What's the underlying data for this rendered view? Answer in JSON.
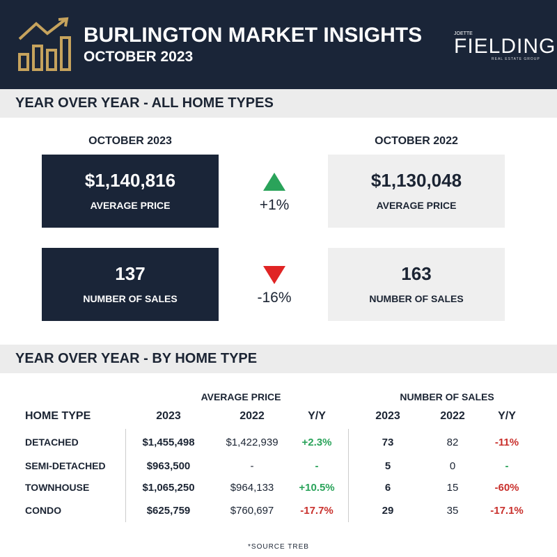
{
  "header": {
    "title": "BURLINGTON MARKET INSIGHTS",
    "subtitle": "OCTOBER 2023",
    "logo_top": "JOETTE",
    "logo_name": "FIELDING",
    "logo_sub": "REAL ESTATE GROUP"
  },
  "summary": {
    "title": "YEAR OVER YEAR - ALL HOME TYPES",
    "period_current": "OCTOBER 2023",
    "period_previous": "OCTOBER 2022",
    "price": {
      "current": "$1,140,816",
      "previous": "$1,130,048",
      "label": "AVERAGE PRICE",
      "change": "+1%"
    },
    "sales": {
      "current": "137",
      "previous": "163",
      "label": "NUMBER OF SALES",
      "change": "-16%"
    }
  },
  "by_type": {
    "title": "YEAR OVER YEAR - BY HOME TYPE",
    "group_price": "AVERAGE PRICE",
    "group_sales": "NUMBER OF SALES",
    "columns": [
      "HOME TYPE",
      "2023",
      "2022",
      "Y/Y",
      "2023",
      "2022",
      "Y/Y"
    ],
    "rows": [
      [
        "DETACHED",
        "$1,455,498",
        "$1,422,939",
        "+2.3%",
        "73",
        "82",
        "-11%"
      ],
      [
        "SEMI-DETACHED",
        "$963,500",
        "-",
        "-",
        "5",
        "0",
        "-"
      ],
      [
        "TOWNHOUSE",
        "$1,065,250",
        "$964,133",
        "+10.5%",
        "6",
        "15",
        "-60%"
      ],
      [
        "CONDO",
        "$625,759",
        "$760,697",
        "-17.7%",
        "29",
        "35",
        "-17.1%"
      ]
    ]
  },
  "footer": "*SOURCE TREB"
}
